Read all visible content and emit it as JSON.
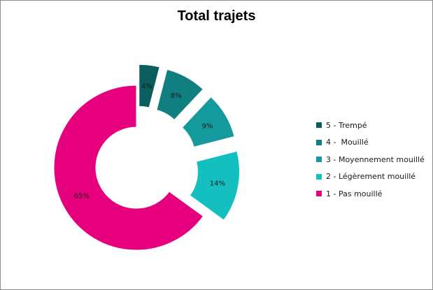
{
  "chart_data": {
    "type": "pie",
    "title": "Total trajets",
    "donut": true,
    "exploded": true,
    "legend_position": "right",
    "slices": [
      {
        "label": "5 - Trempé",
        "value": 4,
        "display": "4%",
        "color": "#0B5E5E"
      },
      {
        "label": "4 -  Mouillé",
        "value": 8,
        "display": "8%",
        "color": "#117F80"
      },
      {
        "label": "3 - Moyennement mouillé",
        "value": 9,
        "display": "9%",
        "color": "#149A9C"
      },
      {
        "label": "2 - Légèrement mouillé",
        "value": 14,
        "display": "14%",
        "color": "#13BFBF"
      },
      {
        "label": "1 - Pas mouillé",
        "value": 65,
        "display": "65%",
        "color": "#E6007E"
      }
    ]
  }
}
